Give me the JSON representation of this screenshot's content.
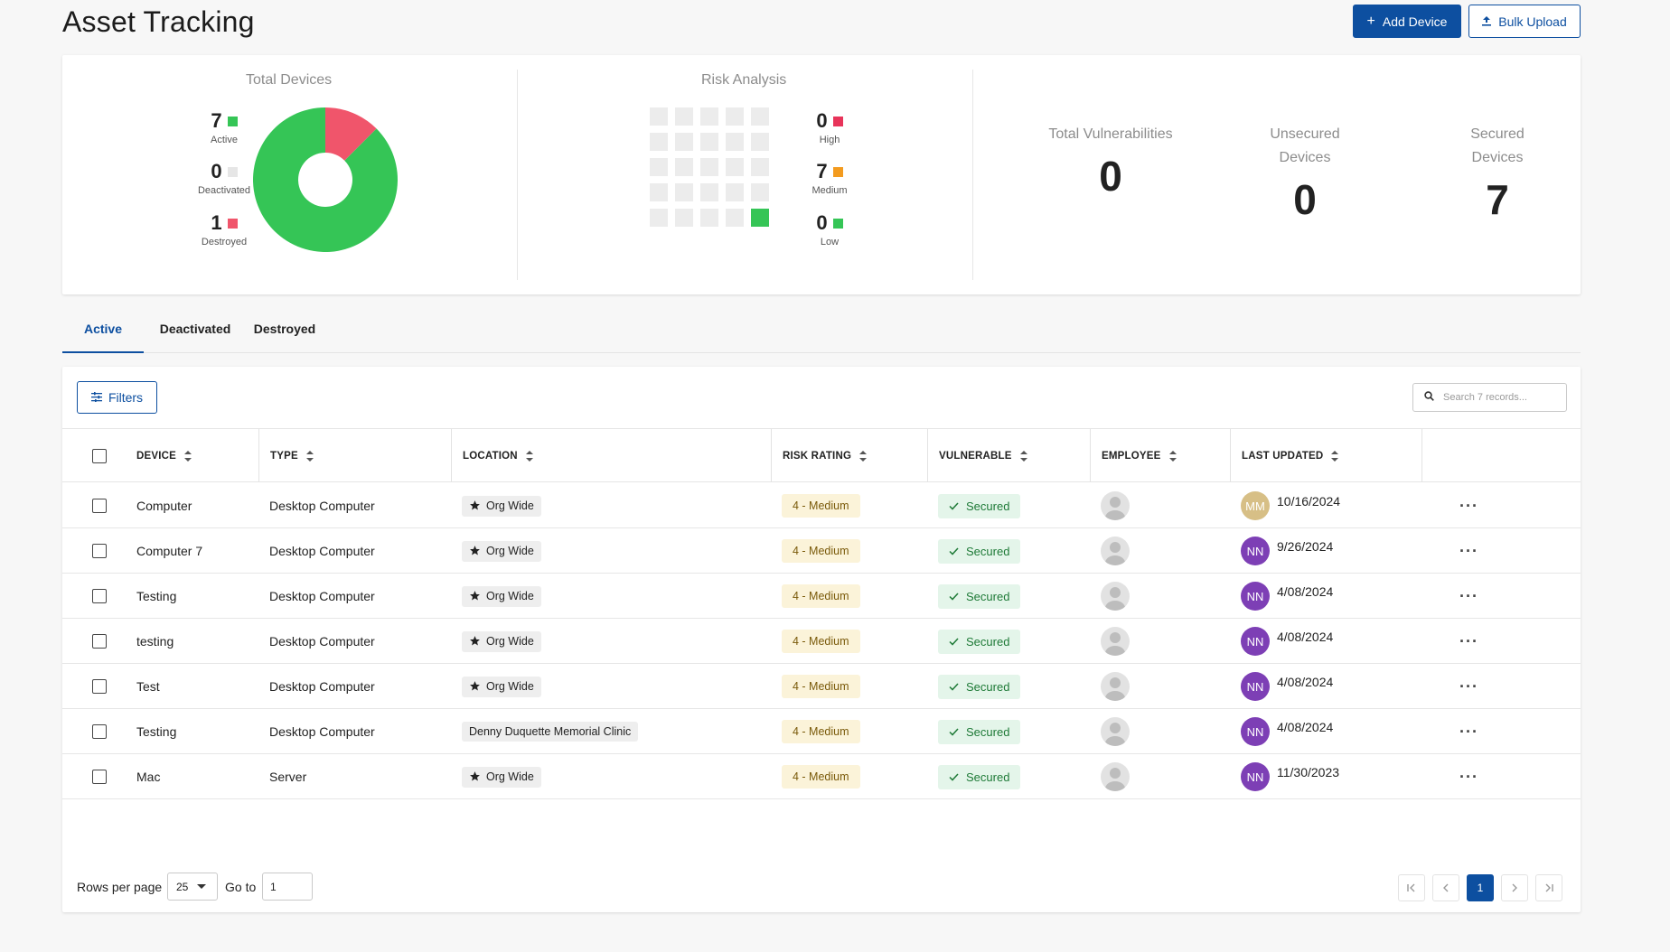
{
  "header": {
    "title": "Asset Tracking",
    "add_device_label": "Add Device",
    "bulk_upload_label": "Bulk Upload"
  },
  "total_devices": {
    "title": "Total Devices",
    "items": [
      {
        "value": "7",
        "label": "Active",
        "color": "#35c556"
      },
      {
        "value": "0",
        "label": "Deactivated",
        "color": "#e6e6e6"
      },
      {
        "value": "1",
        "label": "Destroyed",
        "color": "#f0556b"
      }
    ]
  },
  "risk_analysis": {
    "title": "Risk Analysis",
    "items": [
      {
        "value": "0",
        "label": "High",
        "color": "#e8345a"
      },
      {
        "value": "7",
        "label": "Medium",
        "color": "#f39b1f"
      },
      {
        "value": "0",
        "label": "Low",
        "color": "#35c556"
      }
    ]
  },
  "summary": [
    {
      "label": "Total Vulnerabilities",
      "value": "0"
    },
    {
      "label": "Unsecured Devices",
      "value": "0"
    },
    {
      "label": "Secured Devices",
      "value": "7"
    }
  ],
  "tabs": [
    "Active",
    "Deactivated",
    "Destroyed"
  ],
  "toolbar": {
    "filters_label": "Filters",
    "search_placeholder": "Search 7 records..."
  },
  "columns": [
    "DEVICE",
    "TYPE",
    "LOCATION",
    "RISK RATING",
    "VULNERABLE",
    "EMPLOYEE",
    "LAST UPDATED"
  ],
  "rows": [
    {
      "device": "Computer",
      "type": "Desktop Computer",
      "location": "Org Wide",
      "location_icon": "star",
      "risk": "4 - Medium",
      "vulnerable": "Secured",
      "updater": "MM",
      "updater_color": "#d7bf86",
      "updated": "10/16/2024"
    },
    {
      "device": "Computer 7",
      "type": "Desktop Computer",
      "location": "Org Wide",
      "location_icon": "star",
      "risk": "4 - Medium",
      "vulnerable": "Secured",
      "updater": "NN",
      "updater_color": "#7d3fb5",
      "updated": "9/26/2024"
    },
    {
      "device": "Testing",
      "type": "Desktop Computer",
      "location": "Org Wide",
      "location_icon": "star",
      "risk": "4 - Medium",
      "vulnerable": "Secured",
      "updater": "NN",
      "updater_color": "#7d3fb5",
      "updated": "4/08/2024"
    },
    {
      "device": "testing",
      "type": "Desktop Computer",
      "location": "Org Wide",
      "location_icon": "star",
      "risk": "4 - Medium",
      "vulnerable": "Secured",
      "updater": "NN",
      "updater_color": "#7d3fb5",
      "updated": "4/08/2024"
    },
    {
      "device": "Test",
      "type": "Desktop Computer",
      "location": "Org Wide",
      "location_icon": "star",
      "risk": "4 - Medium",
      "vulnerable": "Secured",
      "updater": "NN",
      "updater_color": "#7d3fb5",
      "updated": "4/08/2024"
    },
    {
      "device": "Testing",
      "type": "Desktop Computer",
      "location": "Denny Duquette Memorial Clinic",
      "location_icon": "",
      "risk": "4 - Medium",
      "vulnerable": "Secured",
      "updater": "NN",
      "updater_color": "#7d3fb5",
      "updated": "4/08/2024"
    },
    {
      "device": "Mac",
      "type": "Server",
      "location": "Org Wide",
      "location_icon": "star",
      "risk": "4 - Medium",
      "vulnerable": "Secured",
      "updater": "NN",
      "updater_color": "#7d3fb5",
      "updated": "11/30/2023"
    }
  ],
  "pagination": {
    "rows_per_page_label": "Rows per page",
    "rows_per_page_value": "25",
    "go_to_label": "Go to",
    "go_to_value": "1",
    "current_page": "1"
  },
  "colors": {
    "brand": "#0d4fa0",
    "active_green": "#35c556",
    "destroyed_red": "#f0556b"
  }
}
